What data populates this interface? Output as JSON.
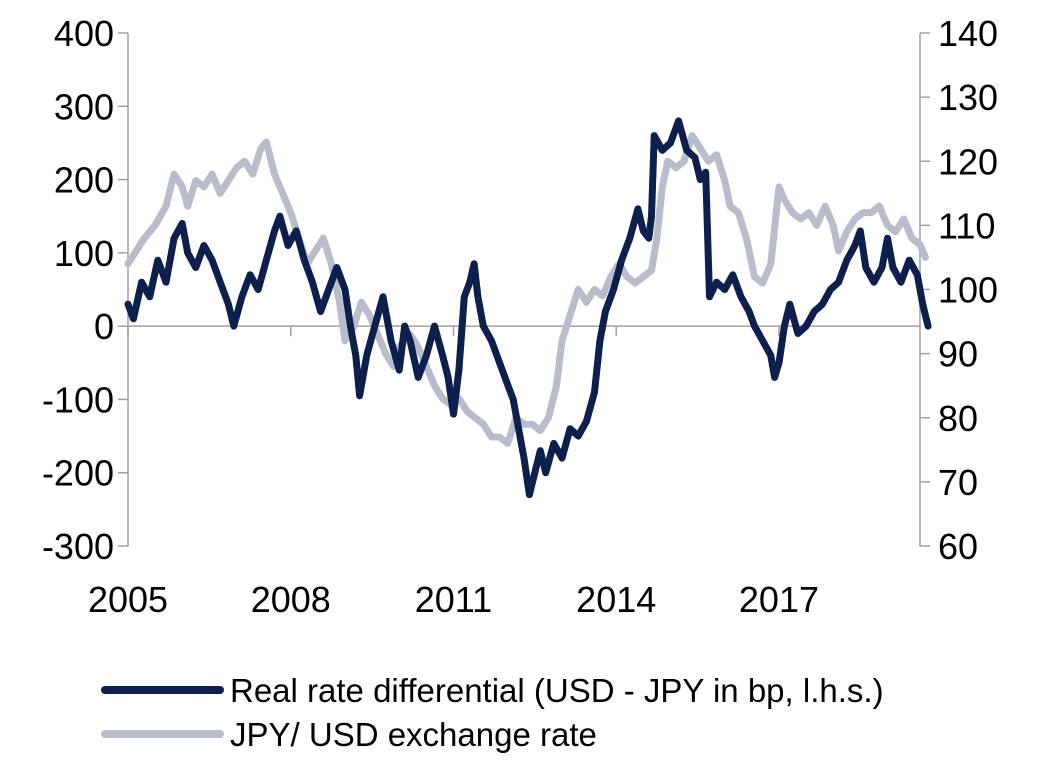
{
  "chart_data": {
    "type": "line",
    "title": "",
    "x_axis": {
      "ticks": [
        "2005",
        "2008",
        "2011",
        "2014",
        "2017"
      ],
      "range": [
        2005,
        2019.6
      ]
    },
    "y_left": {
      "ticks": [
        "400",
        "300",
        "200",
        "100",
        "0",
        "-100",
        "-200",
        "-300"
      ],
      "range": [
        -300,
        400
      ]
    },
    "y_right": {
      "ticks": [
        "140",
        "130",
        "120",
        "110",
        "100",
        "90",
        "80",
        "70",
        "60"
      ],
      "range": [
        60,
        140
      ]
    },
    "grid": false,
    "legend_position": "bottom",
    "series": [
      {
        "name": "Real rate differential (USD - JPY in bp, l.h.s.)",
        "axis": "left",
        "color": "#0d1f4d",
        "points": [
          [
            2005.0,
            30
          ],
          [
            2005.1,
            10
          ],
          [
            2005.25,
            60
          ],
          [
            2005.4,
            40
          ],
          [
            2005.55,
            90
          ],
          [
            2005.7,
            60
          ],
          [
            2005.85,
            120
          ],
          [
            2006.0,
            140
          ],
          [
            2006.1,
            100
          ],
          [
            2006.25,
            80
          ],
          [
            2006.4,
            110
          ],
          [
            2006.55,
            90
          ],
          [
            2006.7,
            60
          ],
          [
            2006.85,
            30
          ],
          [
            2006.95,
            0
          ],
          [
            2007.1,
            40
          ],
          [
            2007.25,
            70
          ],
          [
            2007.4,
            50
          ],
          [
            2007.55,
            90
          ],
          [
            2007.7,
            130
          ],
          [
            2007.8,
            150
          ],
          [
            2007.95,
            110
          ],
          [
            2008.1,
            130
          ],
          [
            2008.25,
            90
          ],
          [
            2008.4,
            60
          ],
          [
            2008.55,
            20
          ],
          [
            2008.7,
            50
          ],
          [
            2008.85,
            80
          ],
          [
            2009.0,
            50
          ],
          [
            2009.1,
            0
          ],
          [
            2009.2,
            -40
          ],
          [
            2009.27,
            -95
          ],
          [
            2009.4,
            -40
          ],
          [
            2009.55,
            0
          ],
          [
            2009.7,
            40
          ],
          [
            2009.85,
            -20
          ],
          [
            2010.0,
            -60
          ],
          [
            2010.1,
            0
          ],
          [
            2010.2,
            -20
          ],
          [
            2010.35,
            -70
          ],
          [
            2010.5,
            -40
          ],
          [
            2010.65,
            0
          ],
          [
            2010.8,
            -40
          ],
          [
            2010.9,
            -70
          ],
          [
            2011.0,
            -120
          ],
          [
            2011.1,
            -60
          ],
          [
            2011.2,
            40
          ],
          [
            2011.3,
            60
          ],
          [
            2011.38,
            85
          ],
          [
            2011.45,
            40
          ],
          [
            2011.55,
            0
          ],
          [
            2011.7,
            -20
          ],
          [
            2011.85,
            -50
          ],
          [
            2012.0,
            -80
          ],
          [
            2012.1,
            -100
          ],
          [
            2012.2,
            -140
          ],
          [
            2012.3,
            -180
          ],
          [
            2012.4,
            -230
          ],
          [
            2012.5,
            -200
          ],
          [
            2012.6,
            -170
          ],
          [
            2012.7,
            -200
          ],
          [
            2012.85,
            -160
          ],
          [
            2013.0,
            -180
          ],
          [
            2013.15,
            -140
          ],
          [
            2013.3,
            -150
          ],
          [
            2013.45,
            -130
          ],
          [
            2013.6,
            -90
          ],
          [
            2013.7,
            -20
          ],
          [
            2013.8,
            20
          ],
          [
            2013.95,
            50
          ],
          [
            2014.1,
            90
          ],
          [
            2014.25,
            120
          ],
          [
            2014.4,
            160
          ],
          [
            2014.5,
            130
          ],
          [
            2014.6,
            120
          ],
          [
            2014.65,
            150
          ],
          [
            2014.7,
            260
          ],
          [
            2014.85,
            240
          ],
          [
            2015.0,
            250
          ],
          [
            2015.15,
            280
          ],
          [
            2015.3,
            240
          ],
          [
            2015.45,
            230
          ],
          [
            2015.55,
            200
          ],
          [
            2015.65,
            210
          ],
          [
            2015.72,
            40
          ],
          [
            2015.85,
            60
          ],
          [
            2016.0,
            50
          ],
          [
            2016.15,
            70
          ],
          [
            2016.3,
            40
          ],
          [
            2016.45,
            20
          ],
          [
            2016.55,
            0
          ],
          [
            2016.7,
            -20
          ],
          [
            2016.85,
            -40
          ],
          [
            2016.92,
            -70
          ],
          [
            2017.0,
            -50
          ],
          [
            2017.1,
            0
          ],
          [
            2017.2,
            30
          ],
          [
            2017.35,
            -10
          ],
          [
            2017.5,
            0
          ],
          [
            2017.65,
            20
          ],
          [
            2017.8,
            30
          ],
          [
            2017.95,
            50
          ],
          [
            2018.1,
            60
          ],
          [
            2018.25,
            90
          ],
          [
            2018.4,
            110
          ],
          [
            2018.5,
            130
          ],
          [
            2018.6,
            80
          ],
          [
            2018.75,
            60
          ],
          [
            2018.9,
            80
          ],
          [
            2019.0,
            120
          ],
          [
            2019.1,
            80
          ],
          [
            2019.25,
            60
          ],
          [
            2019.4,
            90
          ],
          [
            2019.55,
            70
          ],
          [
            2019.65,
            30
          ],
          [
            2019.75,
            0
          ]
        ]
      },
      {
        "name": "JPY/ USD exchange rate",
        "axis": "right",
        "color": "#b8bccb",
        "points": [
          [
            2005.0,
            104
          ],
          [
            2005.15,
            106
          ],
          [
            2005.3,
            108
          ],
          [
            2005.5,
            110
          ],
          [
            2005.7,
            113
          ],
          [
            2005.85,
            118
          ],
          [
            2006.0,
            116
          ],
          [
            2006.1,
            113
          ],
          [
            2006.25,
            117
          ],
          [
            2006.4,
            116
          ],
          [
            2006.55,
            118
          ],
          [
            2006.7,
            115
          ],
          [
            2006.85,
            117
          ],
          [
            2007.0,
            119
          ],
          [
            2007.15,
            120
          ],
          [
            2007.3,
            118
          ],
          [
            2007.45,
            122
          ],
          [
            2007.55,
            123
          ],
          [
            2007.7,
            118
          ],
          [
            2007.85,
            115
          ],
          [
            2008.0,
            112
          ],
          [
            2008.15,
            108
          ],
          [
            2008.3,
            104
          ],
          [
            2008.45,
            106
          ],
          [
            2008.6,
            108
          ],
          [
            2008.75,
            104
          ],
          [
            2008.9,
            98
          ],
          [
            2009.0,
            92
          ],
          [
            2009.15,
            94
          ],
          [
            2009.3,
            98
          ],
          [
            2009.45,
            96
          ],
          [
            2009.6,
            93
          ],
          [
            2009.75,
            90
          ],
          [
            2009.9,
            88
          ],
          [
            2010.0,
            91
          ],
          [
            2010.2,
            93
          ],
          [
            2010.35,
            91
          ],
          [
            2010.5,
            88
          ],
          [
            2010.65,
            85
          ],
          [
            2010.8,
            83
          ],
          [
            2010.95,
            82
          ],
          [
            2011.1,
            83
          ],
          [
            2011.25,
            81
          ],
          [
            2011.4,
            80
          ],
          [
            2011.55,
            79
          ],
          [
            2011.7,
            77
          ],
          [
            2011.85,
            77
          ],
          [
            2012.0,
            76
          ],
          [
            2012.15,
            80
          ],
          [
            2012.3,
            79
          ],
          [
            2012.45,
            79
          ],
          [
            2012.6,
            78
          ],
          [
            2012.75,
            80
          ],
          [
            2012.9,
            85
          ],
          [
            2013.0,
            92
          ],
          [
            2013.15,
            96
          ],
          [
            2013.3,
            100
          ],
          [
            2013.45,
            98
          ],
          [
            2013.6,
            100
          ],
          [
            2013.75,
            99
          ],
          [
            2013.9,
            102
          ],
          [
            2014.05,
            104
          ],
          [
            2014.2,
            102
          ],
          [
            2014.35,
            101
          ],
          [
            2014.5,
            102
          ],
          [
            2014.65,
            103
          ],
          [
            2014.75,
            108
          ],
          [
            2014.85,
            116
          ],
          [
            2014.95,
            120
          ],
          [
            2015.1,
            119
          ],
          [
            2015.25,
            120
          ],
          [
            2015.4,
            124
          ],
          [
            2015.55,
            122
          ],
          [
            2015.7,
            120
          ],
          [
            2015.85,
            121
          ],
          [
            2016.0,
            117
          ],
          [
            2016.1,
            113
          ],
          [
            2016.25,
            112
          ],
          [
            2016.4,
            108
          ],
          [
            2016.55,
            102
          ],
          [
            2016.7,
            101
          ],
          [
            2016.85,
            104
          ],
          [
            2017.0,
            116
          ],
          [
            2017.1,
            114
          ],
          [
            2017.25,
            112
          ],
          [
            2017.4,
            111
          ],
          [
            2017.55,
            112
          ],
          [
            2017.7,
            110
          ],
          [
            2017.85,
            113
          ],
          [
            2018.0,
            110
          ],
          [
            2018.1,
            106
          ],
          [
            2018.25,
            109
          ],
          [
            2018.4,
            111
          ],
          [
            2018.55,
            112
          ],
          [
            2018.7,
            112
          ],
          [
            2018.85,
            113
          ],
          [
            2019.0,
            110
          ],
          [
            2019.15,
            109
          ],
          [
            2019.3,
            111
          ],
          [
            2019.45,
            108
          ],
          [
            2019.6,
            107
          ],
          [
            2019.7,
            105
          ]
        ]
      }
    ]
  }
}
